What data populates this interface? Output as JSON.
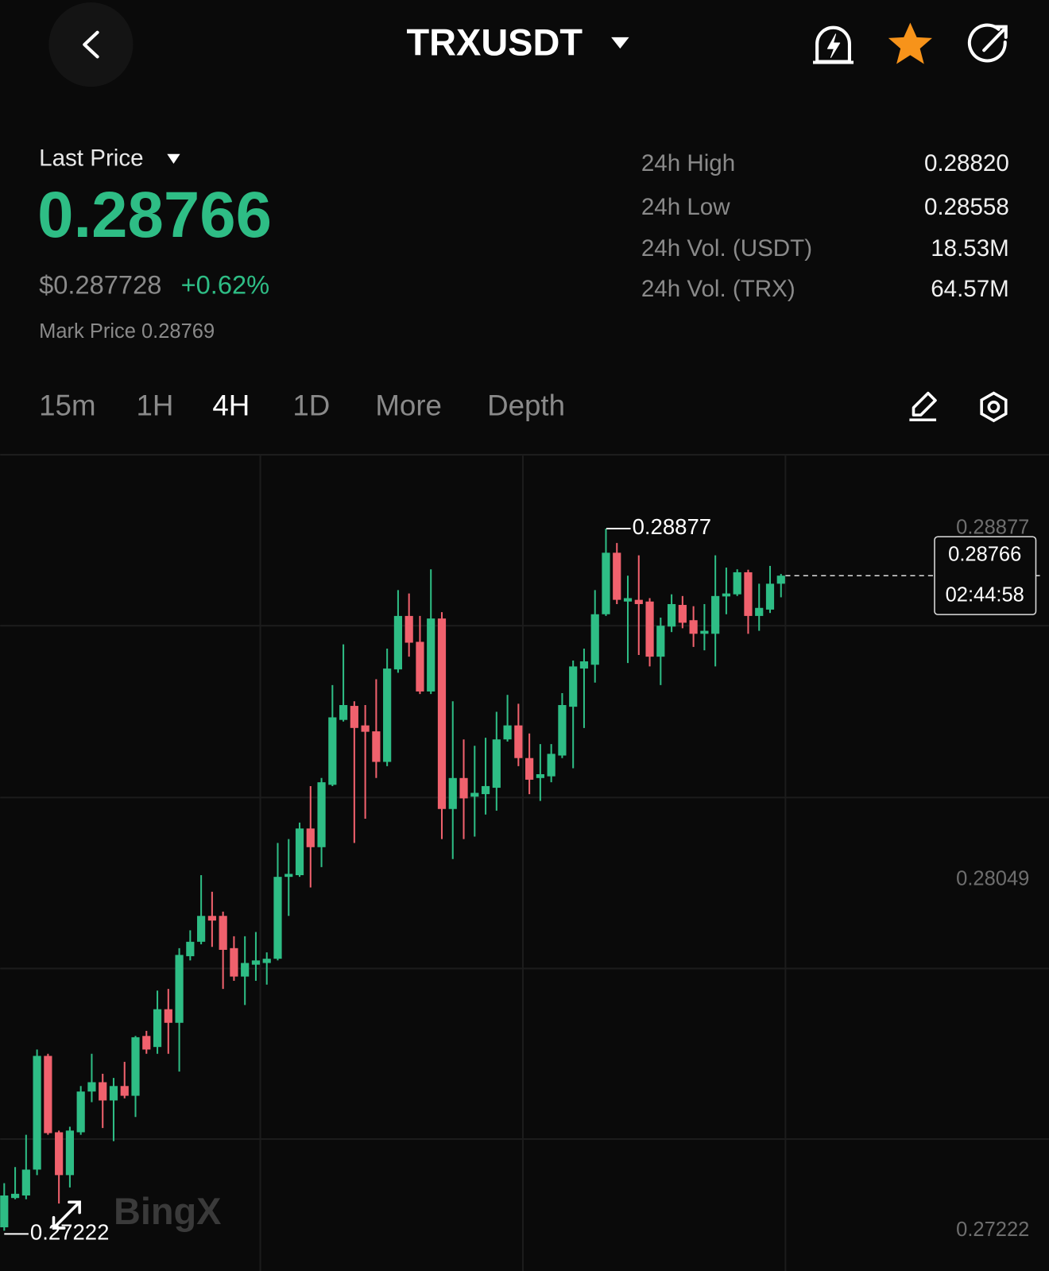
{
  "header": {
    "title": "TRXUSDT"
  },
  "ticker": {
    "last_price_label": "Last Price",
    "last_price": "0.28766",
    "usd_price": "$0.287728",
    "change": "+0.62%",
    "mark_price": "Mark Price 0.28769",
    "stats": [
      {
        "label": "24h High",
        "value": "0.28820"
      },
      {
        "label": "24h Low",
        "value": "0.28558"
      },
      {
        "label": "24h Vol. (USDT)",
        "value": "18.53M"
      },
      {
        "label": "24h Vol. (TRX)",
        "value": "64.57M"
      }
    ]
  },
  "timeframes": [
    "15m",
    "1H",
    "4H",
    "1D",
    "More",
    "Depth"
  ],
  "active_timeframe": 2,
  "chart_data": {
    "type": "candlestick",
    "up_color": "#2ebd85",
    "down_color": "#f0616d",
    "ylim": [
      0.27127,
      0.29051
    ],
    "yticks": [
      0.27222,
      0.28049,
      0.28877
    ],
    "ygrid": [
      0.27438,
      0.2784,
      0.28243,
      0.28648
    ],
    "high_marker": 0.28877,
    "low_marker": 0.27222,
    "last_price": 0.28766,
    "countdown": "02:44:58",
    "watermark": "BingX",
    "open": [
      0.2723,
      0.27299,
      0.27305,
      0.27366,
      0.27634,
      0.27454,
      0.27353,
      0.27454,
      0.2755,
      0.27572,
      0.27529,
      0.27563,
      0.2754,
      0.27681,
      0.27655,
      0.27744,
      0.27712,
      0.27869,
      0.27903,
      0.27964,
      0.27964,
      0.27888,
      0.27821,
      0.27849,
      0.27853,
      0.27863,
      0.28056,
      0.2806,
      0.2817,
      0.28126,
      0.28273,
      0.28426,
      0.28459,
      0.28413,
      0.28399,
      0.28327,
      0.28545,
      0.28671,
      0.2861,
      0.28493,
      0.28665,
      0.28216,
      0.28289,
      0.28245,
      0.28251,
      0.28266,
      0.2838,
      0.28413,
      0.28336,
      0.28289,
      0.28293,
      0.28342,
      0.28457,
      0.28547,
      0.28556,
      0.28675,
      0.2882,
      0.28705,
      0.28709,
      0.28705,
      0.28575,
      0.28646,
      0.28697,
      0.28661,
      0.28629,
      0.28629,
      0.28717,
      0.28722,
      0.28774,
      0.28671,
      0.28686,
      0.28747
    ],
    "high": [
      0.27334,
      0.27372,
      0.27448,
      0.27649,
      0.27639,
      0.27458,
      0.27467,
      0.27563,
      0.27639,
      0.27592,
      0.27582,
      0.2762,
      0.27681,
      0.27693,
      0.27788,
      0.27792,
      0.27888,
      0.2793,
      0.2806,
      0.28021,
      0.27974,
      0.27916,
      0.27916,
      0.27926,
      0.27878,
      0.28136,
      0.28145,
      0.28184,
      0.2827,
      0.28289,
      0.28508,
      0.28604,
      0.2847,
      0.28461,
      0.28522,
      0.28594,
      0.28732,
      0.28724,
      0.28671,
      0.28781,
      0.2868,
      0.2847,
      0.2838,
      0.28365,
      0.28384,
      0.28445,
      0.28485,
      0.28464,
      0.28394,
      0.28369,
      0.28369,
      0.28489,
      0.28566,
      0.28594,
      0.28732,
      0.28877,
      0.28843,
      0.28766,
      0.28814,
      0.28713,
      0.28667,
      0.28722,
      0.28718,
      0.28694,
      0.28699,
      0.28814,
      0.28785,
      0.28781,
      0.2878,
      0.28747,
      0.28789,
      0.2877
    ],
    "low": [
      0.27222,
      0.27296,
      0.27296,
      0.27353,
      0.27448,
      0.27286,
      0.27324,
      0.27448,
      0.27525,
      0.27464,
      0.27433,
      0.27534,
      0.2749,
      0.27639,
      0.27639,
      0.27639,
      0.27597,
      0.27859,
      0.27897,
      0.27891,
      0.27792,
      0.27811,
      0.27754,
      0.27811,
      0.27802,
      0.27859,
      0.27964,
      0.28056,
      0.28031,
      0.28079,
      0.2827,
      0.28422,
      0.28136,
      0.28193,
      0.28289,
      0.28317,
      0.28537,
      0.28575,
      0.28487,
      0.28487,
      0.28145,
      0.28098,
      0.28145,
      0.28151,
      0.28203,
      0.28212,
      0.28375,
      0.28317,
      0.28251,
      0.28235,
      0.28279,
      0.28336,
      0.28312,
      0.28407,
      0.28514,
      0.28671,
      0.28699,
      0.2856,
      0.28579,
      0.28552,
      0.28508,
      0.28633,
      0.28642,
      0.28598,
      0.2859,
      0.28552,
      0.28675,
      0.28718,
      0.28629,
      0.28636,
      0.28678,
      0.28715
    ],
    "close": [
      0.27305,
      0.27309,
      0.27366,
      0.27634,
      0.27452,
      0.27353,
      0.27458,
      0.2755,
      0.27572,
      0.27529,
      0.27563,
      0.2754,
      0.27678,
      0.27649,
      0.27744,
      0.27712,
      0.27872,
      0.27903,
      0.27964,
      0.27953,
      0.27884,
      0.27821,
      0.27853,
      0.27859,
      0.27863,
      0.28056,
      0.28063,
      0.2817,
      0.28126,
      0.28279,
      0.28432,
      0.28461,
      0.28407,
      0.28398,
      0.28327,
      0.28547,
      0.28671,
      0.28608,
      0.28493,
      0.28665,
      0.28216,
      0.28289,
      0.28241,
      0.28254,
      0.2827,
      0.2838,
      0.28413,
      0.28336,
      0.28285,
      0.28298,
      0.28346,
      0.28461,
      0.28552,
      0.28564,
      0.28675,
      0.2882,
      0.28709,
      0.28713,
      0.28699,
      0.28575,
      0.28648,
      0.28699,
      0.28655,
      0.28629,
      0.28636,
      0.28718,
      0.28724,
      0.28774,
      0.28671,
      0.2869,
      0.28747,
      0.28766
    ]
  }
}
